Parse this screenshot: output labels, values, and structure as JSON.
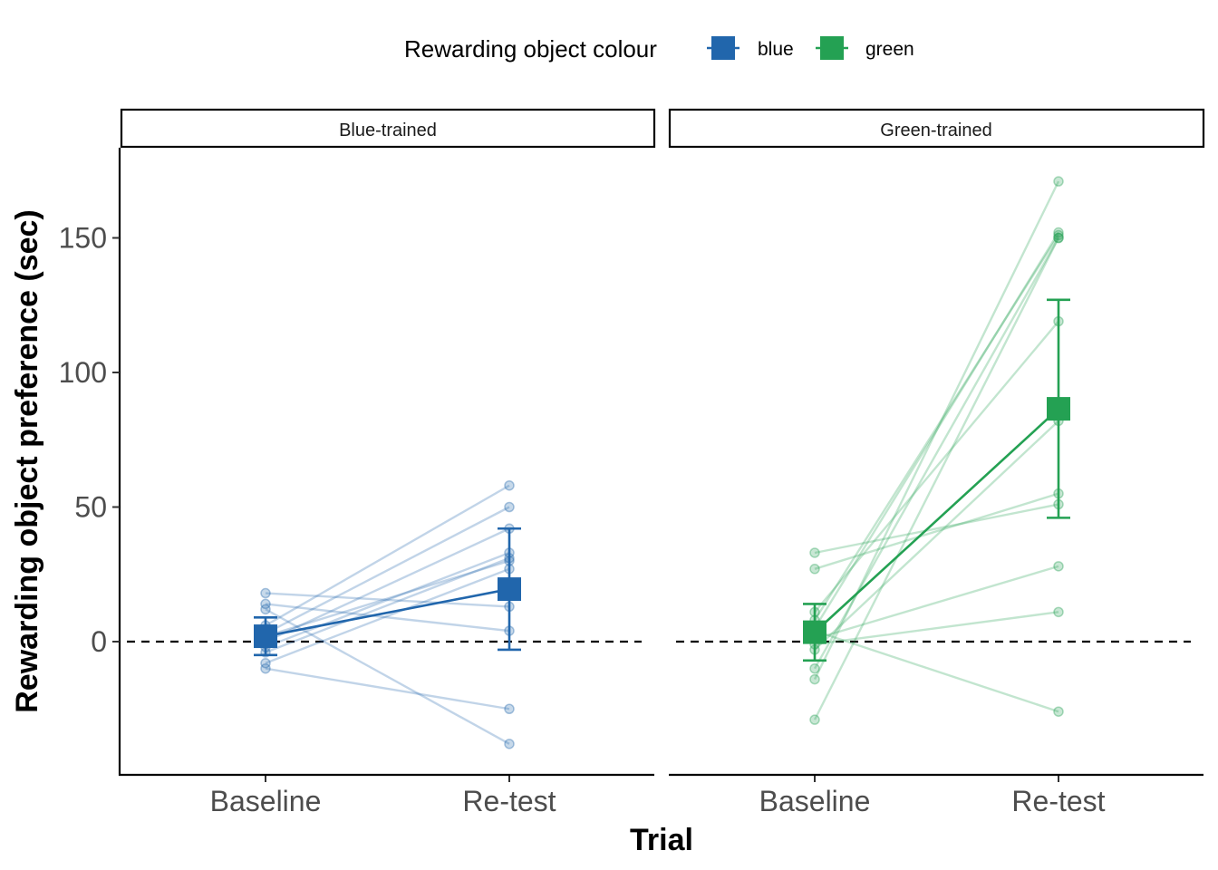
{
  "chart_data": {
    "type": "scatter",
    "title": "",
    "xlabel": "Trial",
    "ylabel": "Rewarding object preference (sec)",
    "legend": {
      "title": "Rewarding object colour",
      "placement": "top",
      "items": [
        {
          "label": "blue",
          "color": "#2166ac"
        },
        {
          "label": "green",
          "color": "#24a153"
        }
      ]
    },
    "categories": [
      "Baseline",
      "Re-test"
    ],
    "ylim": [
      -50,
      182
    ],
    "yticks": [
      0,
      50,
      100,
      150
    ],
    "reference_line": 0,
    "panels": [
      {
        "label": "Blue-trained",
        "color": "#2166ac",
        "mean": {
          "Baseline": 2,
          "Re-test": 19.5
        },
        "error": {
          "Baseline": [
            -5,
            9
          ],
          "Re-test": [
            -3,
            42
          ]
        },
        "subjects": [
          [
            18,
            13
          ],
          [
            14,
            4
          ],
          [
            12,
            -38
          ],
          [
            6,
            58
          ],
          [
            3,
            50
          ],
          [
            0,
            42
          ],
          [
            -2,
            33
          ],
          [
            -4,
            31
          ],
          [
            -8,
            27
          ],
          [
            -10,
            -25
          ],
          [
            2,
            30
          ]
        ]
      },
      {
        "label": "Green-trained",
        "color": "#24a153",
        "mean": {
          "Baseline": 3.5,
          "Re-test": 86.5
        },
        "error": {
          "Baseline": [
            -7,
            14
          ],
          "Re-test": [
            46,
            127
          ]
        },
        "subjects": [
          [
            33,
            51
          ],
          [
            27,
            55
          ],
          [
            11,
            119
          ],
          [
            8,
            151
          ],
          [
            5,
            152
          ],
          [
            1,
            28
          ],
          [
            -1,
            11
          ],
          [
            -3,
            82
          ],
          [
            -10,
            150
          ],
          [
            -14,
            171
          ],
          [
            -29,
            150
          ],
          [
            4,
            -26
          ]
        ]
      }
    ]
  }
}
